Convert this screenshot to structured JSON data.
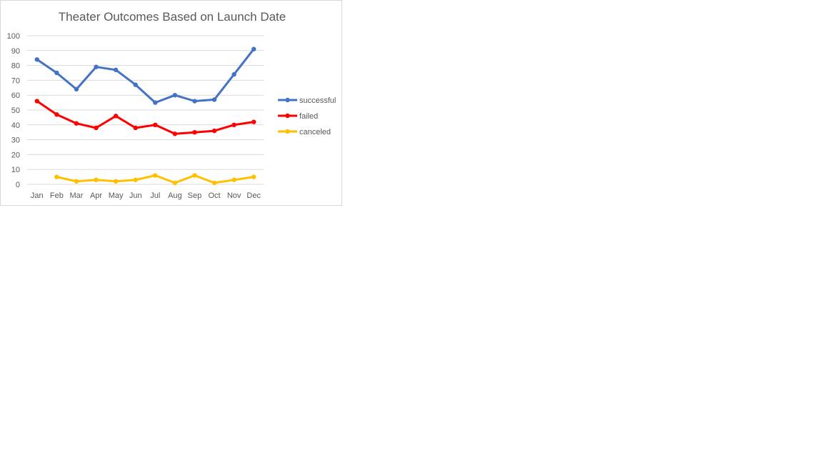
{
  "chart_data": {
    "type": "line",
    "title": "Theater Outcomes Based on Launch Date",
    "xlabel": "",
    "ylabel": "",
    "categories": [
      "Jan",
      "Feb",
      "Mar",
      "Apr",
      "May",
      "Jun",
      "Jul",
      "Aug",
      "Sep",
      "Oct",
      "Nov",
      "Dec"
    ],
    "ylim": [
      0,
      100
    ],
    "yticks": [
      "0",
      "10",
      "20",
      "30",
      "40",
      "50",
      "60",
      "70",
      "80",
      "90",
      "100"
    ],
    "grid": true,
    "legend_position": "right",
    "series": [
      {
        "name": "successful",
        "color": "#4472c4",
        "values": [
          84,
          75,
          64,
          79,
          77,
          67,
          55,
          60,
          56,
          57,
          74,
          91
        ]
      },
      {
        "name": "failed",
        "color": "#ff0000",
        "values": [
          56,
          47,
          41,
          38,
          46,
          38,
          40,
          34,
          35,
          36,
          40,
          42
        ]
      },
      {
        "name": "canceled",
        "color": "#ffc000",
        "values": [
          null,
          5,
          2,
          3,
          2,
          3,
          6,
          1,
          6,
          1,
          3,
          5
        ]
      }
    ]
  }
}
